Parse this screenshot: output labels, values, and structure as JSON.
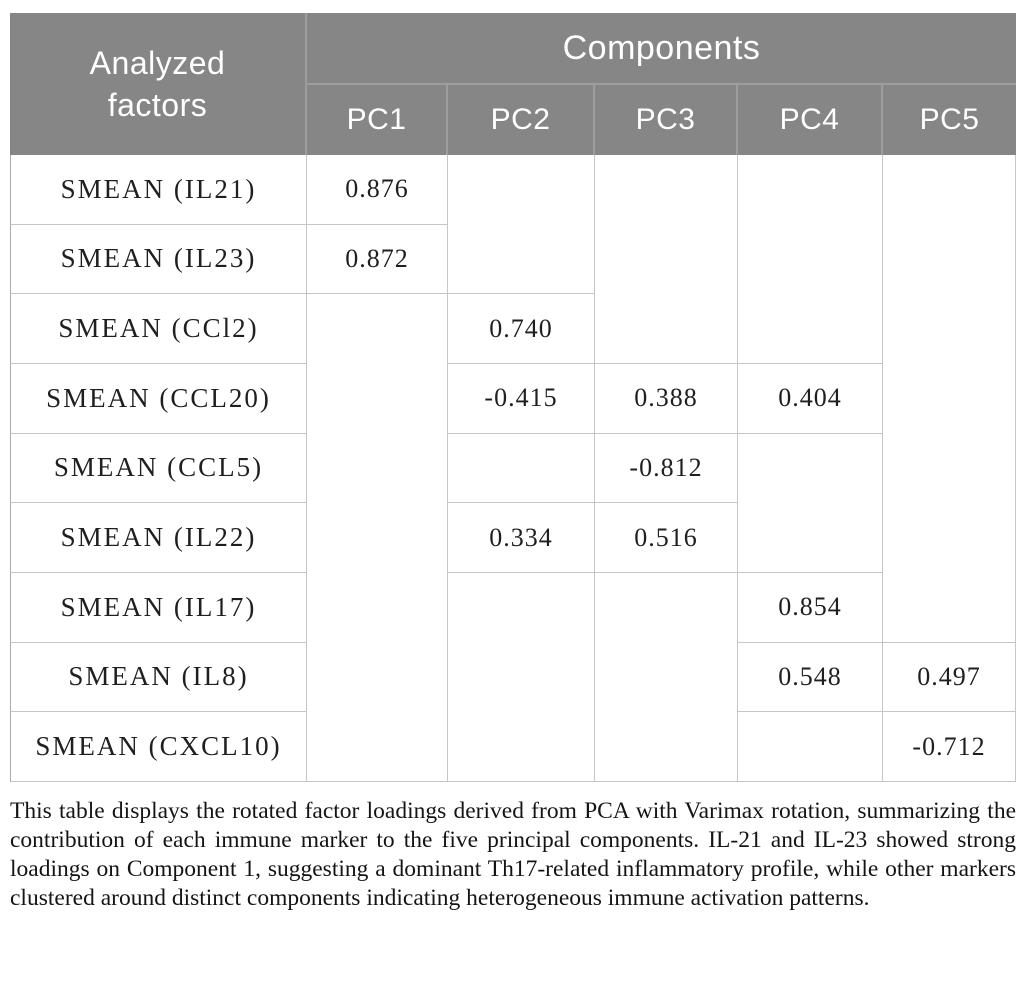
{
  "table": {
    "header": {
      "analyzed_factors": "Analyzed\nfactors",
      "components": "Components",
      "pcs": [
        "PC1",
        "PC2",
        "PC3",
        "PC4",
        "PC5"
      ]
    },
    "rows": [
      {
        "factor": "SMEAN (IL21)",
        "pc1": "0.876"
      },
      {
        "factor": "SMEAN (IL23)",
        "pc1": "0.872"
      },
      {
        "factor": "SMEAN (CCl2)",
        "pc2": "0.740"
      },
      {
        "factor": "SMEAN (CCL20)",
        "pc2": "-0.415",
        "pc3": "0.388",
        "pc4": "0.404"
      },
      {
        "factor": "SMEAN (CCL5)",
        "pc3": "-0.812"
      },
      {
        "factor": "SMEAN (IL22)",
        "pc2": "0.334",
        "pc3": "0.516"
      },
      {
        "factor": "SMEAN (IL17)",
        "pc4": "0.854"
      },
      {
        "factor": "SMEAN (IL8)",
        "pc4": "0.548",
        "pc5": "0.497"
      },
      {
        "factor": "SMEAN (CXCL10)",
        "pc5": "-0.712"
      }
    ]
  },
  "caption": {
    "text": "This table displays the rotated factor loadings derived from PCA with Varimax rotation, summarizing the contribution of each immune marker to the five principal components. IL-21 and IL-23 showed strong loadings on Component 1, suggesting a dominant Th17-related inflammatory profile, while other markers clustered around distinct components indicating heterogeneous immune activation patterns."
  },
  "colors": {
    "header-bg": "#868686",
    "header-line": "#9d9d9d",
    "header-text": "#ffffff",
    "grid-line": "#c6c6c6",
    "outer-line": "#a9a9a9",
    "text": "#1f1f1f",
    "caption-text": "#141414",
    "page-bg": "#ffffff"
  }
}
